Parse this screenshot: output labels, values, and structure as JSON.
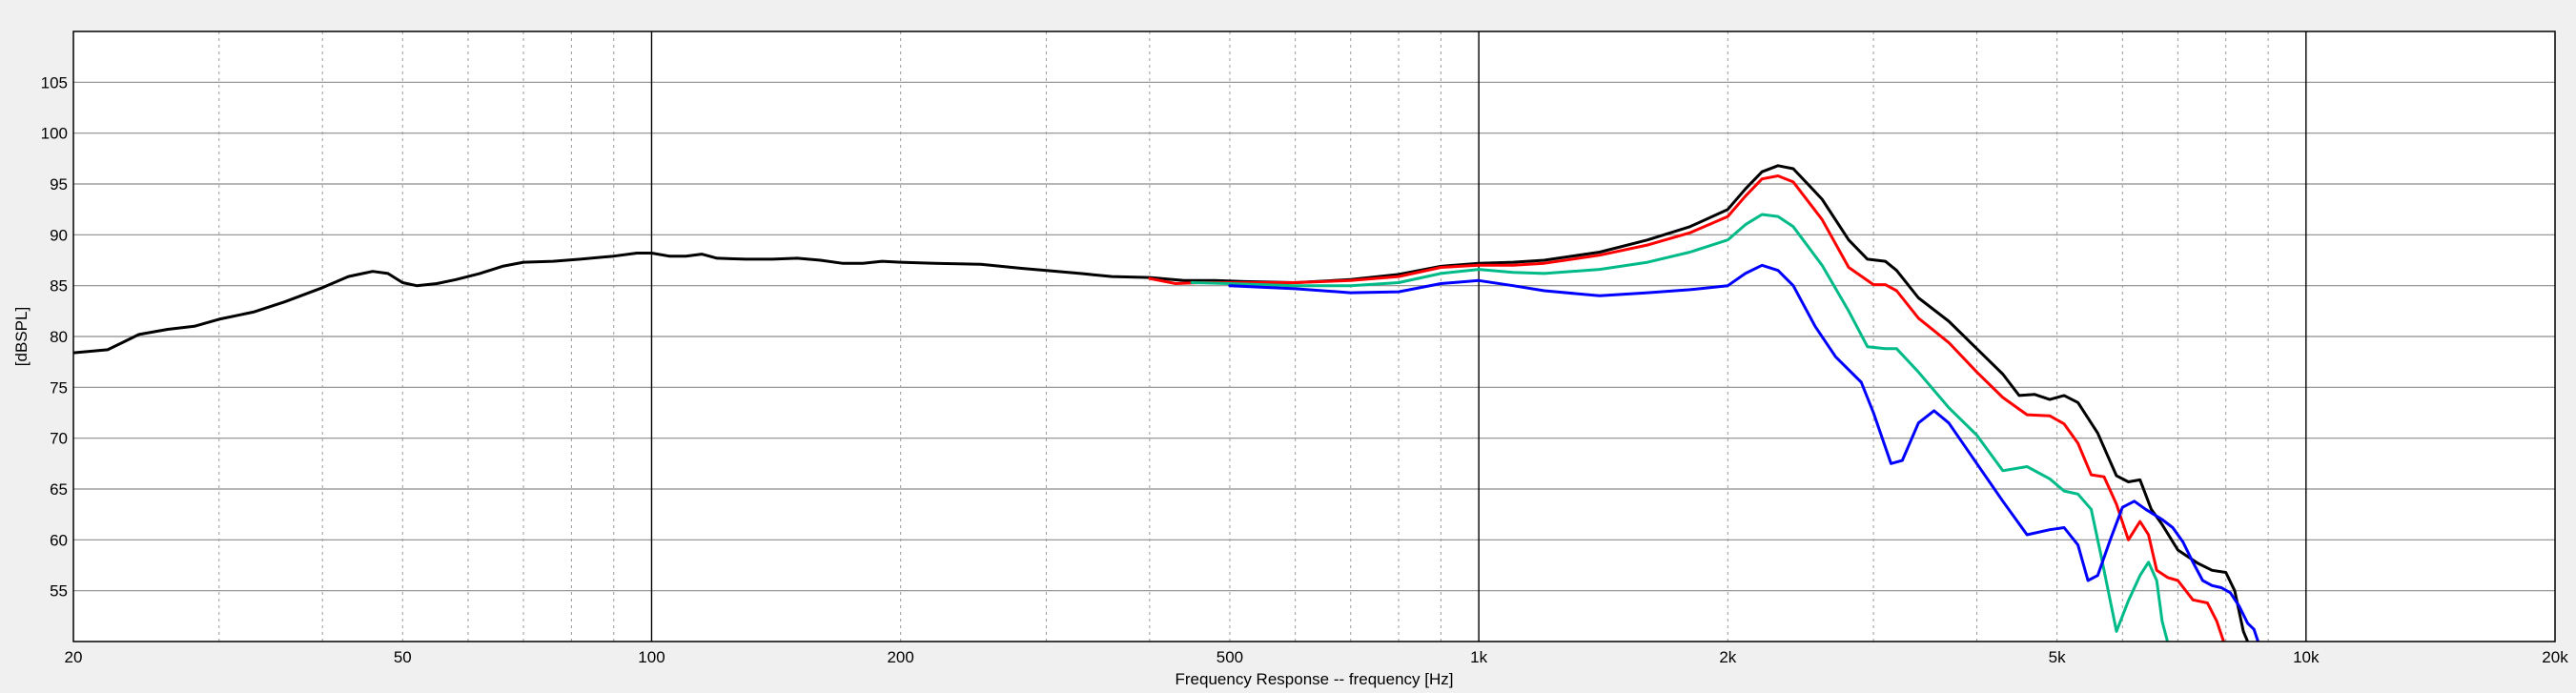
{
  "chart_data": {
    "type": "line",
    "title": "",
    "xlabel": "Frequency Response -- frequency [Hz]",
    "ylabel": "[dBSPL]",
    "x_scale": "log",
    "xlim": [
      20,
      20000
    ],
    "ylim": [
      50,
      110
    ],
    "grid": true,
    "x_ticks": [
      {
        "value": 20,
        "label": "20"
      },
      {
        "value": 50,
        "label": "50"
      },
      {
        "value": 100,
        "label": "100"
      },
      {
        "value": 200,
        "label": "200"
      },
      {
        "value": 500,
        "label": "500"
      },
      {
        "value": 1000,
        "label": "1k"
      },
      {
        "value": 2000,
        "label": "2k"
      },
      {
        "value": 5000,
        "label": "5k"
      },
      {
        "value": 10000,
        "label": "10k"
      },
      {
        "value": 20000,
        "label": "20k"
      }
    ],
    "y_ticks": [
      55,
      60,
      65,
      70,
      75,
      80,
      85,
      90,
      95,
      100,
      105
    ],
    "series": [
      {
        "color": "#000000",
        "points": [
          [
            20,
            78.4
          ],
          [
            22,
            78.7
          ],
          [
            24,
            80.2
          ],
          [
            26,
            80.7
          ],
          [
            28,
            81.0
          ],
          [
            30,
            81.7
          ],
          [
            33,
            82.4
          ],
          [
            36,
            83.4
          ],
          [
            40,
            84.8
          ],
          [
            43,
            85.9
          ],
          [
            46,
            86.4
          ],
          [
            48,
            86.2
          ],
          [
            50,
            85.3
          ],
          [
            52,
            85.0
          ],
          [
            55,
            85.2
          ],
          [
            58,
            85.6
          ],
          [
            62,
            86.2
          ],
          [
            66,
            86.9
          ],
          [
            70,
            87.3
          ],
          [
            76,
            87.4
          ],
          [
            82,
            87.6
          ],
          [
            90,
            87.9
          ],
          [
            96,
            88.2
          ],
          [
            100,
            88.2
          ],
          [
            105,
            87.9
          ],
          [
            110,
            87.9
          ],
          [
            115,
            88.1
          ],
          [
            120,
            87.7
          ],
          [
            130,
            87.6
          ],
          [
            140,
            87.6
          ],
          [
            150,
            87.7
          ],
          [
            160,
            87.5
          ],
          [
            170,
            87.2
          ],
          [
            180,
            87.2
          ],
          [
            190,
            87.4
          ],
          [
            200,
            87.3
          ],
          [
            220,
            87.2
          ],
          [
            250,
            87.1
          ],
          [
            280,
            86.7
          ],
          [
            300,
            86.5
          ],
          [
            330,
            86.2
          ],
          [
            360,
            85.9
          ],
          [
            400,
            85.8
          ],
          [
            440,
            85.5
          ],
          [
            480,
            85.5
          ],
          [
            520,
            85.4
          ],
          [
            600,
            85.3
          ],
          [
            700,
            85.6
          ],
          [
            800,
            86.1
          ],
          [
            900,
            86.9
          ],
          [
            1000,
            87.2
          ],
          [
            1100,
            87.3
          ],
          [
            1200,
            87.5
          ],
          [
            1400,
            88.3
          ],
          [
            1600,
            89.5
          ],
          [
            1800,
            90.8
          ],
          [
            2000,
            92.5
          ],
          [
            2100,
            94.5
          ],
          [
            2200,
            96.2
          ],
          [
            2300,
            96.8
          ],
          [
            2400,
            96.5
          ],
          [
            2600,
            93.5
          ],
          [
            2800,
            89.5
          ],
          [
            2950,
            87.6
          ],
          [
            3100,
            87.4
          ],
          [
            3200,
            86.5
          ],
          [
            3400,
            83.8
          ],
          [
            3700,
            81.5
          ],
          [
            4000,
            78.8
          ],
          [
            4300,
            76.3
          ],
          [
            4500,
            74.2
          ],
          [
            4700,
            74.3
          ],
          [
            4900,
            73.8
          ],
          [
            5100,
            74.2
          ],
          [
            5300,
            73.5
          ],
          [
            5600,
            70.5
          ],
          [
            5900,
            66.3
          ],
          [
            6100,
            65.7
          ],
          [
            6300,
            65.9
          ],
          [
            6500,
            63.0
          ],
          [
            6700,
            61.5
          ],
          [
            7000,
            59.0
          ],
          [
            7400,
            57.7
          ],
          [
            7700,
            57.0
          ],
          [
            8000,
            56.8
          ],
          [
            8200,
            55.0
          ],
          [
            8400,
            51.0
          ],
          [
            8500,
            50.0
          ]
        ]
      },
      {
        "color": "#ff0000",
        "points": [
          [
            400,
            85.7
          ],
          [
            430,
            85.2
          ],
          [
            460,
            85.3
          ],
          [
            500,
            85.3
          ],
          [
            600,
            85.3
          ],
          [
            700,
            85.5
          ],
          [
            800,
            85.9
          ],
          [
            900,
            86.8
          ],
          [
            1000,
            87.0
          ],
          [
            1100,
            87.0
          ],
          [
            1200,
            87.2
          ],
          [
            1400,
            88.0
          ],
          [
            1600,
            89.0
          ],
          [
            1800,
            90.2
          ],
          [
            2000,
            91.8
          ],
          [
            2100,
            93.8
          ],
          [
            2200,
            95.5
          ],
          [
            2300,
            95.8
          ],
          [
            2400,
            95.2
          ],
          [
            2600,
            91.5
          ],
          [
            2800,
            86.8
          ],
          [
            3000,
            85.1
          ],
          [
            3100,
            85.1
          ],
          [
            3200,
            84.5
          ],
          [
            3400,
            81.8
          ],
          [
            3700,
            79.4
          ],
          [
            4000,
            76.5
          ],
          [
            4300,
            74.0
          ],
          [
            4600,
            72.3
          ],
          [
            4900,
            72.2
          ],
          [
            5100,
            71.4
          ],
          [
            5300,
            69.5
          ],
          [
            5500,
            66.4
          ],
          [
            5700,
            66.2
          ],
          [
            5900,
            63.5
          ],
          [
            6100,
            60.0
          ],
          [
            6300,
            61.8
          ],
          [
            6450,
            60.5
          ],
          [
            6600,
            57.0
          ],
          [
            6800,
            56.3
          ],
          [
            7000,
            56.0
          ],
          [
            7300,
            54.1
          ],
          [
            7600,
            53.8
          ],
          [
            7800,
            52.0
          ],
          [
            7950,
            50.0
          ]
        ]
      },
      {
        "color": "#00bb88",
        "points": [
          [
            450,
            85.3
          ],
          [
            500,
            85.2
          ],
          [
            600,
            85.0
          ],
          [
            700,
            85.0
          ],
          [
            800,
            85.3
          ],
          [
            900,
            86.2
          ],
          [
            1000,
            86.6
          ],
          [
            1100,
            86.3
          ],
          [
            1200,
            86.2
          ],
          [
            1400,
            86.6
          ],
          [
            1600,
            87.3
          ],
          [
            1800,
            88.3
          ],
          [
            2000,
            89.5
          ],
          [
            2100,
            91.0
          ],
          [
            2200,
            92.0
          ],
          [
            2300,
            91.8
          ],
          [
            2400,
            90.8
          ],
          [
            2600,
            87.0
          ],
          [
            2800,
            82.5
          ],
          [
            2950,
            79.0
          ],
          [
            3100,
            78.8
          ],
          [
            3200,
            78.8
          ],
          [
            3400,
            76.5
          ],
          [
            3700,
            73.0
          ],
          [
            4000,
            70.3
          ],
          [
            4300,
            66.8
          ],
          [
            4600,
            67.2
          ],
          [
            4900,
            66.0
          ],
          [
            5100,
            64.8
          ],
          [
            5300,
            64.5
          ],
          [
            5500,
            63.0
          ],
          [
            5650,
            58.5
          ],
          [
            5800,
            54.0
          ],
          [
            5900,
            51.0
          ],
          [
            6100,
            54.0
          ],
          [
            6300,
            56.5
          ],
          [
            6450,
            57.8
          ],
          [
            6600,
            56.0
          ],
          [
            6700,
            52.0
          ],
          [
            6800,
            50.0
          ]
        ]
      },
      {
        "color": "#0000ff",
        "points": [
          [
            500,
            85.0
          ],
          [
            600,
            84.7
          ],
          [
            700,
            84.3
          ],
          [
            800,
            84.4
          ],
          [
            900,
            85.2
          ],
          [
            1000,
            85.5
          ],
          [
            1100,
            85.0
          ],
          [
            1200,
            84.5
          ],
          [
            1400,
            84.0
          ],
          [
            1600,
            84.3
          ],
          [
            1800,
            84.6
          ],
          [
            2000,
            85.0
          ],
          [
            2100,
            86.2
          ],
          [
            2200,
            87.0
          ],
          [
            2300,
            86.5
          ],
          [
            2400,
            85.0
          ],
          [
            2550,
            81.0
          ],
          [
            2700,
            78.0
          ],
          [
            2900,
            75.5
          ],
          [
            3000,
            72.5
          ],
          [
            3150,
            67.5
          ],
          [
            3250,
            67.8
          ],
          [
            3400,
            71.5
          ],
          [
            3550,
            72.7
          ],
          [
            3700,
            71.5
          ],
          [
            4000,
            67.5
          ],
          [
            4300,
            63.8
          ],
          [
            4600,
            60.5
          ],
          [
            4900,
            61.0
          ],
          [
            5100,
            61.2
          ],
          [
            5300,
            59.5
          ],
          [
            5450,
            56.0
          ],
          [
            5600,
            56.5
          ],
          [
            5800,
            60.0
          ],
          [
            6000,
            63.2
          ],
          [
            6200,
            63.8
          ],
          [
            6400,
            63.0
          ],
          [
            6700,
            62.0
          ],
          [
            6900,
            61.2
          ],
          [
            7100,
            59.8
          ],
          [
            7300,
            57.8
          ],
          [
            7500,
            56.0
          ],
          [
            7700,
            55.5
          ],
          [
            7900,
            55.3
          ],
          [
            8100,
            54.8
          ],
          [
            8300,
            53.5
          ],
          [
            8500,
            51.8
          ],
          [
            8650,
            51.2
          ],
          [
            8750,
            50.0
          ]
        ]
      }
    ]
  }
}
